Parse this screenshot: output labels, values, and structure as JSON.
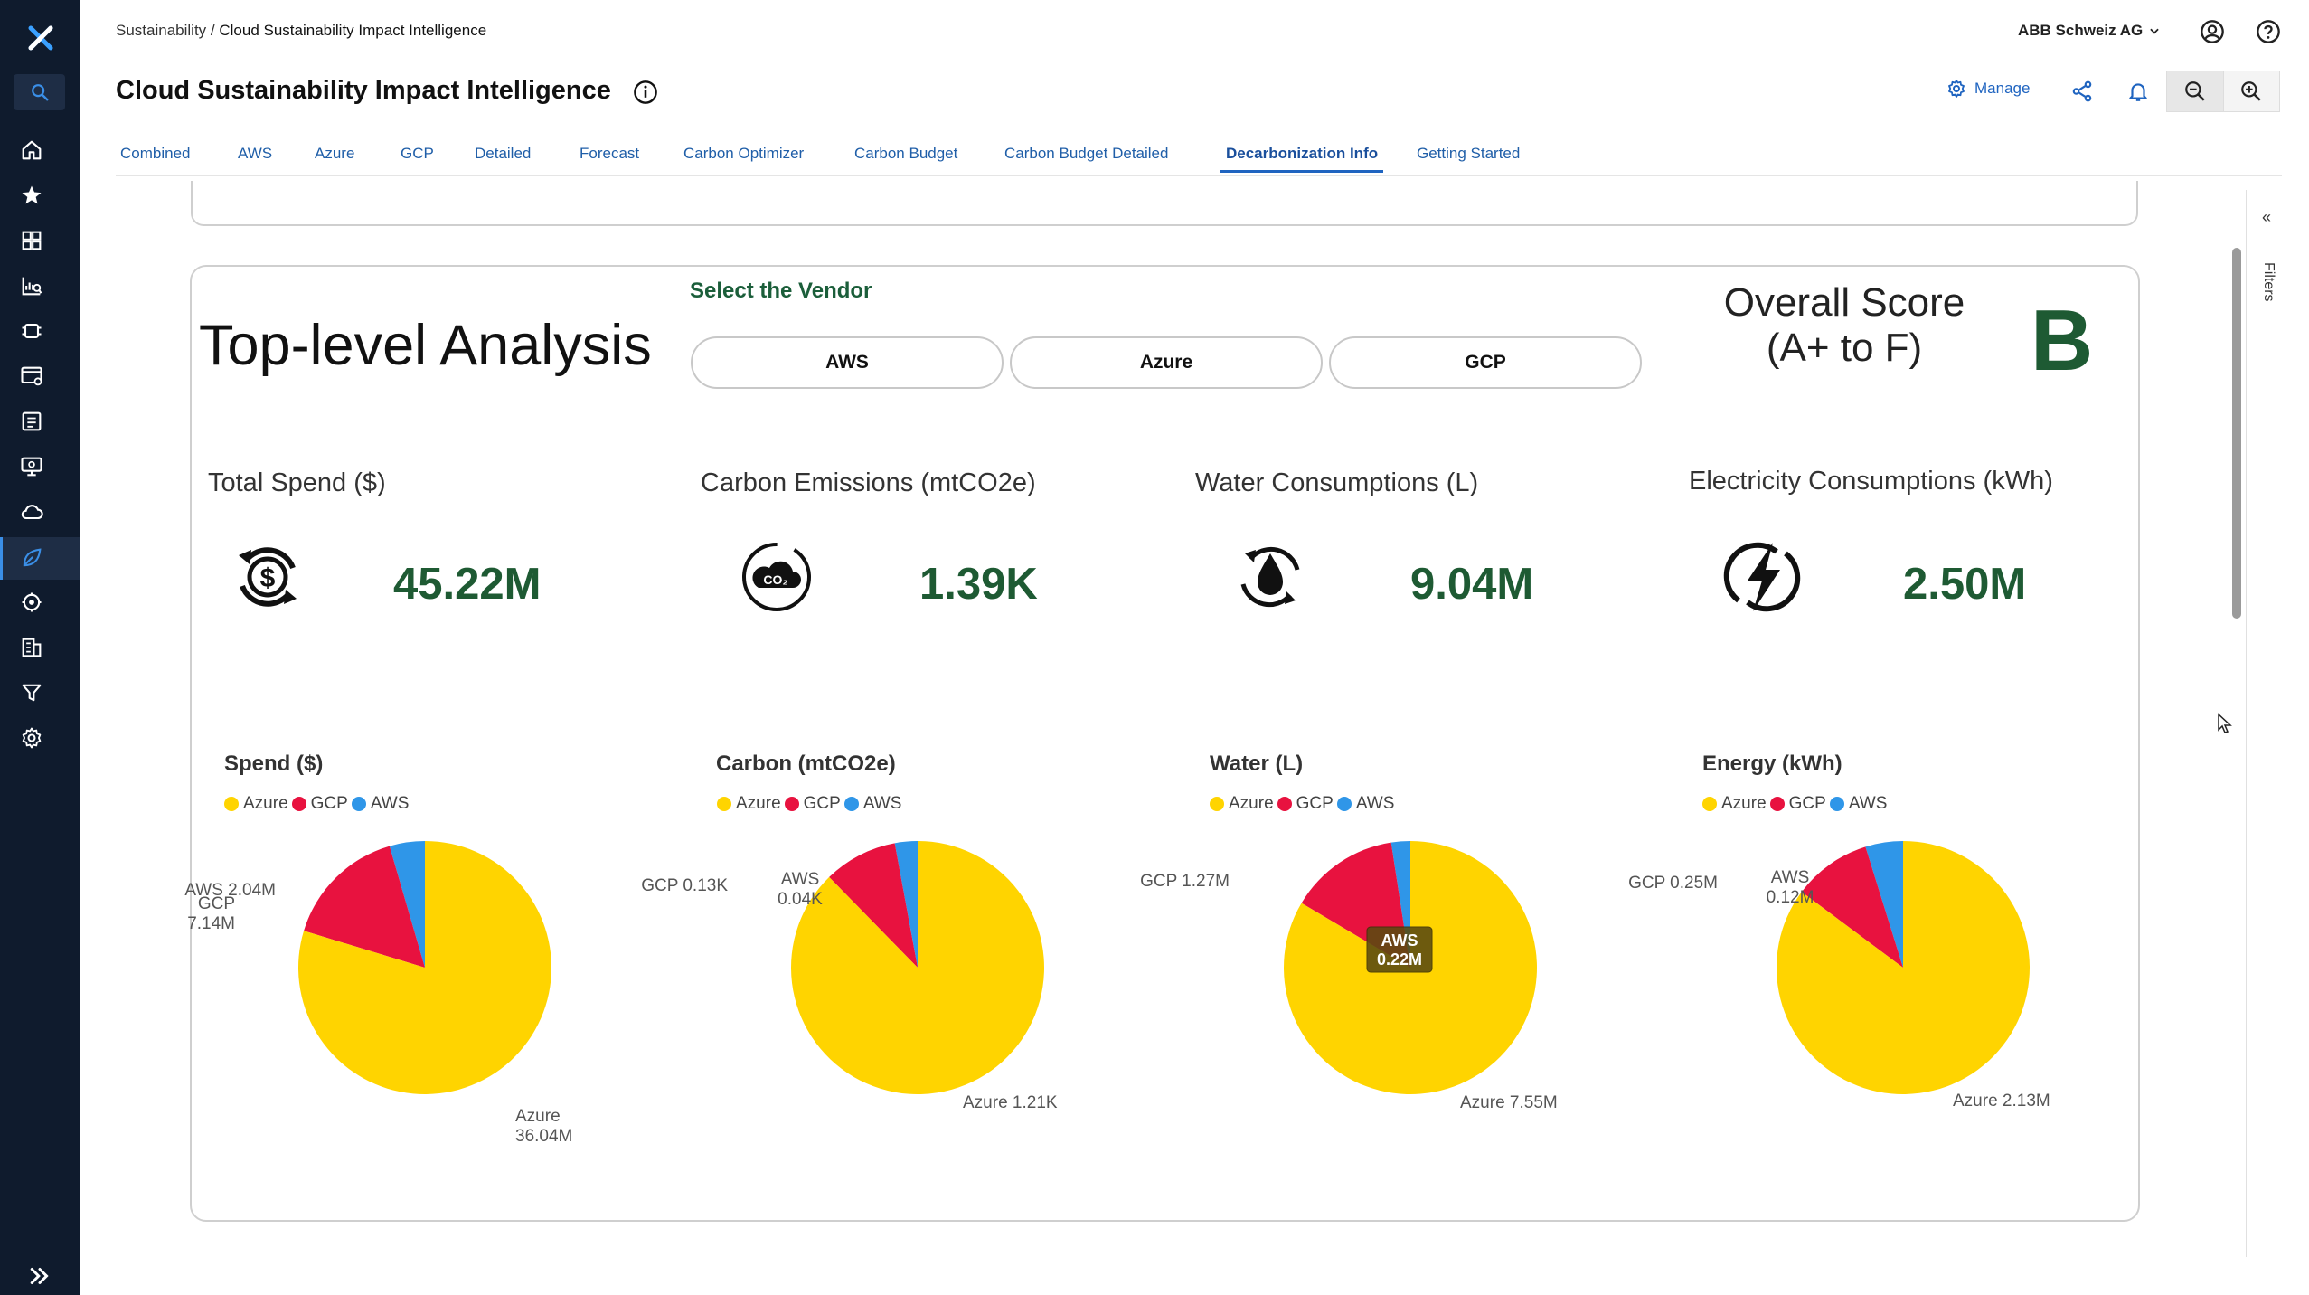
{
  "breadcrumb": {
    "parent": "Sustainability",
    "separator": "/",
    "current": "Cloud Sustainability Impact Intelligence"
  },
  "header": {
    "title": "Cloud Sustainability Impact Intelligence",
    "org": "ABB Schweiz AG",
    "manage_label": "Manage"
  },
  "tabs": [
    {
      "label": "Combined"
    },
    {
      "label": "AWS"
    },
    {
      "label": "Azure"
    },
    {
      "label": "GCP"
    },
    {
      "label": "Detailed"
    },
    {
      "label": "Forecast"
    },
    {
      "label": "Carbon Optimizer"
    },
    {
      "label": "Carbon Budget"
    },
    {
      "label": "Carbon Budget Detailed"
    },
    {
      "label": "Decarbonization Info",
      "active": true
    },
    {
      "label": "Getting Started"
    }
  ],
  "analysis": {
    "title": "Top-level Analysis",
    "vendor_label": "Select the Vendor",
    "vendors": [
      "AWS",
      "Azure",
      "GCP"
    ],
    "score_title_line1": "Overall Score",
    "score_title_line2": "(A+ to F)",
    "score": "B"
  },
  "kpis": [
    {
      "title": "Total Spend ($)",
      "value": "45.22M",
      "icon": "dollar-cycle-icon"
    },
    {
      "title": "Carbon Emissions (mtCO2e)",
      "value": "1.39K",
      "icon": "co2-cloud-icon"
    },
    {
      "title": "Water Consumptions (L)",
      "value": "9.04M",
      "icon": "water-drop-icon"
    },
    {
      "title": "Electricity Consumptions (kWh)",
      "value": "2.50M",
      "icon": "lightning-icon"
    }
  ],
  "legend": [
    {
      "name": "Azure",
      "color": "#FFD400"
    },
    {
      "name": "GCP",
      "color": "#E8123F"
    },
    {
      "name": "AWS",
      "color": "#2F96E8"
    }
  ],
  "colors": {
    "azure": "#FFD400",
    "gcp": "#E8123F",
    "aws": "#2F96E8",
    "accent": "#1F64C0",
    "kpi_green": "#1E5A33"
  },
  "sidebar": {
    "icons": [
      "logo-icon",
      "search-icon",
      "home-icon",
      "star-icon",
      "dashboard-icon",
      "analytics-icon",
      "integration-icon",
      "billing-icon",
      "reports-icon",
      "monitor-icon",
      "cloud-icon",
      "leaf-icon",
      "ai-icon",
      "building-icon",
      "funnel-icon",
      "settings-icon",
      "expand-icon"
    ]
  },
  "filters_label": "Filters",
  "chart_data": [
    {
      "type": "pie",
      "title": "Spend ($)",
      "categories": [
        "Azure",
        "GCP",
        "AWS"
      ],
      "values": [
        36.04,
        7.14,
        2.04
      ],
      "labels": [
        "Azure\n36.04M",
        "GCP\n7.14M",
        "AWS 2.04M"
      ]
    },
    {
      "type": "pie",
      "title": "Carbon (mtCO2e)",
      "categories": [
        "Azure",
        "GCP",
        "AWS"
      ],
      "values": [
        1.21,
        0.13,
        0.04
      ],
      "labels": [
        "Azure 1.21K",
        "GCP 0.13K",
        "AWS\n0.04K"
      ]
    },
    {
      "type": "pie",
      "title": "Water (L)",
      "categories": [
        "Azure",
        "GCP",
        "AWS"
      ],
      "values": [
        7.55,
        1.27,
        0.22
      ],
      "labels": [
        "Azure 7.55M",
        "GCP 1.27M",
        "AWS\n0.22M"
      ],
      "tooltip": {
        "series": "AWS",
        "value": "0.22M"
      }
    },
    {
      "type": "pie",
      "title": "Energy (kWh)",
      "categories": [
        "Azure",
        "GCP",
        "AWS"
      ],
      "values": [
        2.13,
        0.25,
        0.12
      ],
      "labels": [
        "Azure 2.13M",
        "GCP 0.25M",
        "AWS\n0.12M"
      ]
    }
  ]
}
